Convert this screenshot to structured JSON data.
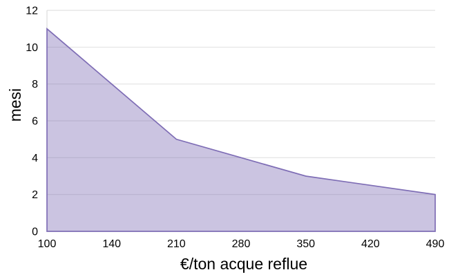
{
  "chart_data": {
    "type": "area",
    "categories": [
      "100",
      "140",
      "210",
      "280",
      "350",
      "420",
      "490"
    ],
    "values": [
      11,
      8,
      5,
      4,
      3,
      2.5,
      2
    ],
    "title": "",
    "xlabel": "€/ton acque reflue",
    "ylabel": "mesi",
    "ylim": [
      0,
      12
    ],
    "yticks": [
      0,
      2,
      4,
      6,
      8,
      10,
      12
    ],
    "grid": true,
    "legend": "none",
    "colors": {
      "area_fill": "rgba(118,100,175,0.38)",
      "area_fill_hex_approx": "#CFC9E6",
      "line": "#7E6DB5",
      "gridline": "#E2E2E2",
      "axis_line": "#D6D6D6",
      "text": "#000000"
    }
  }
}
